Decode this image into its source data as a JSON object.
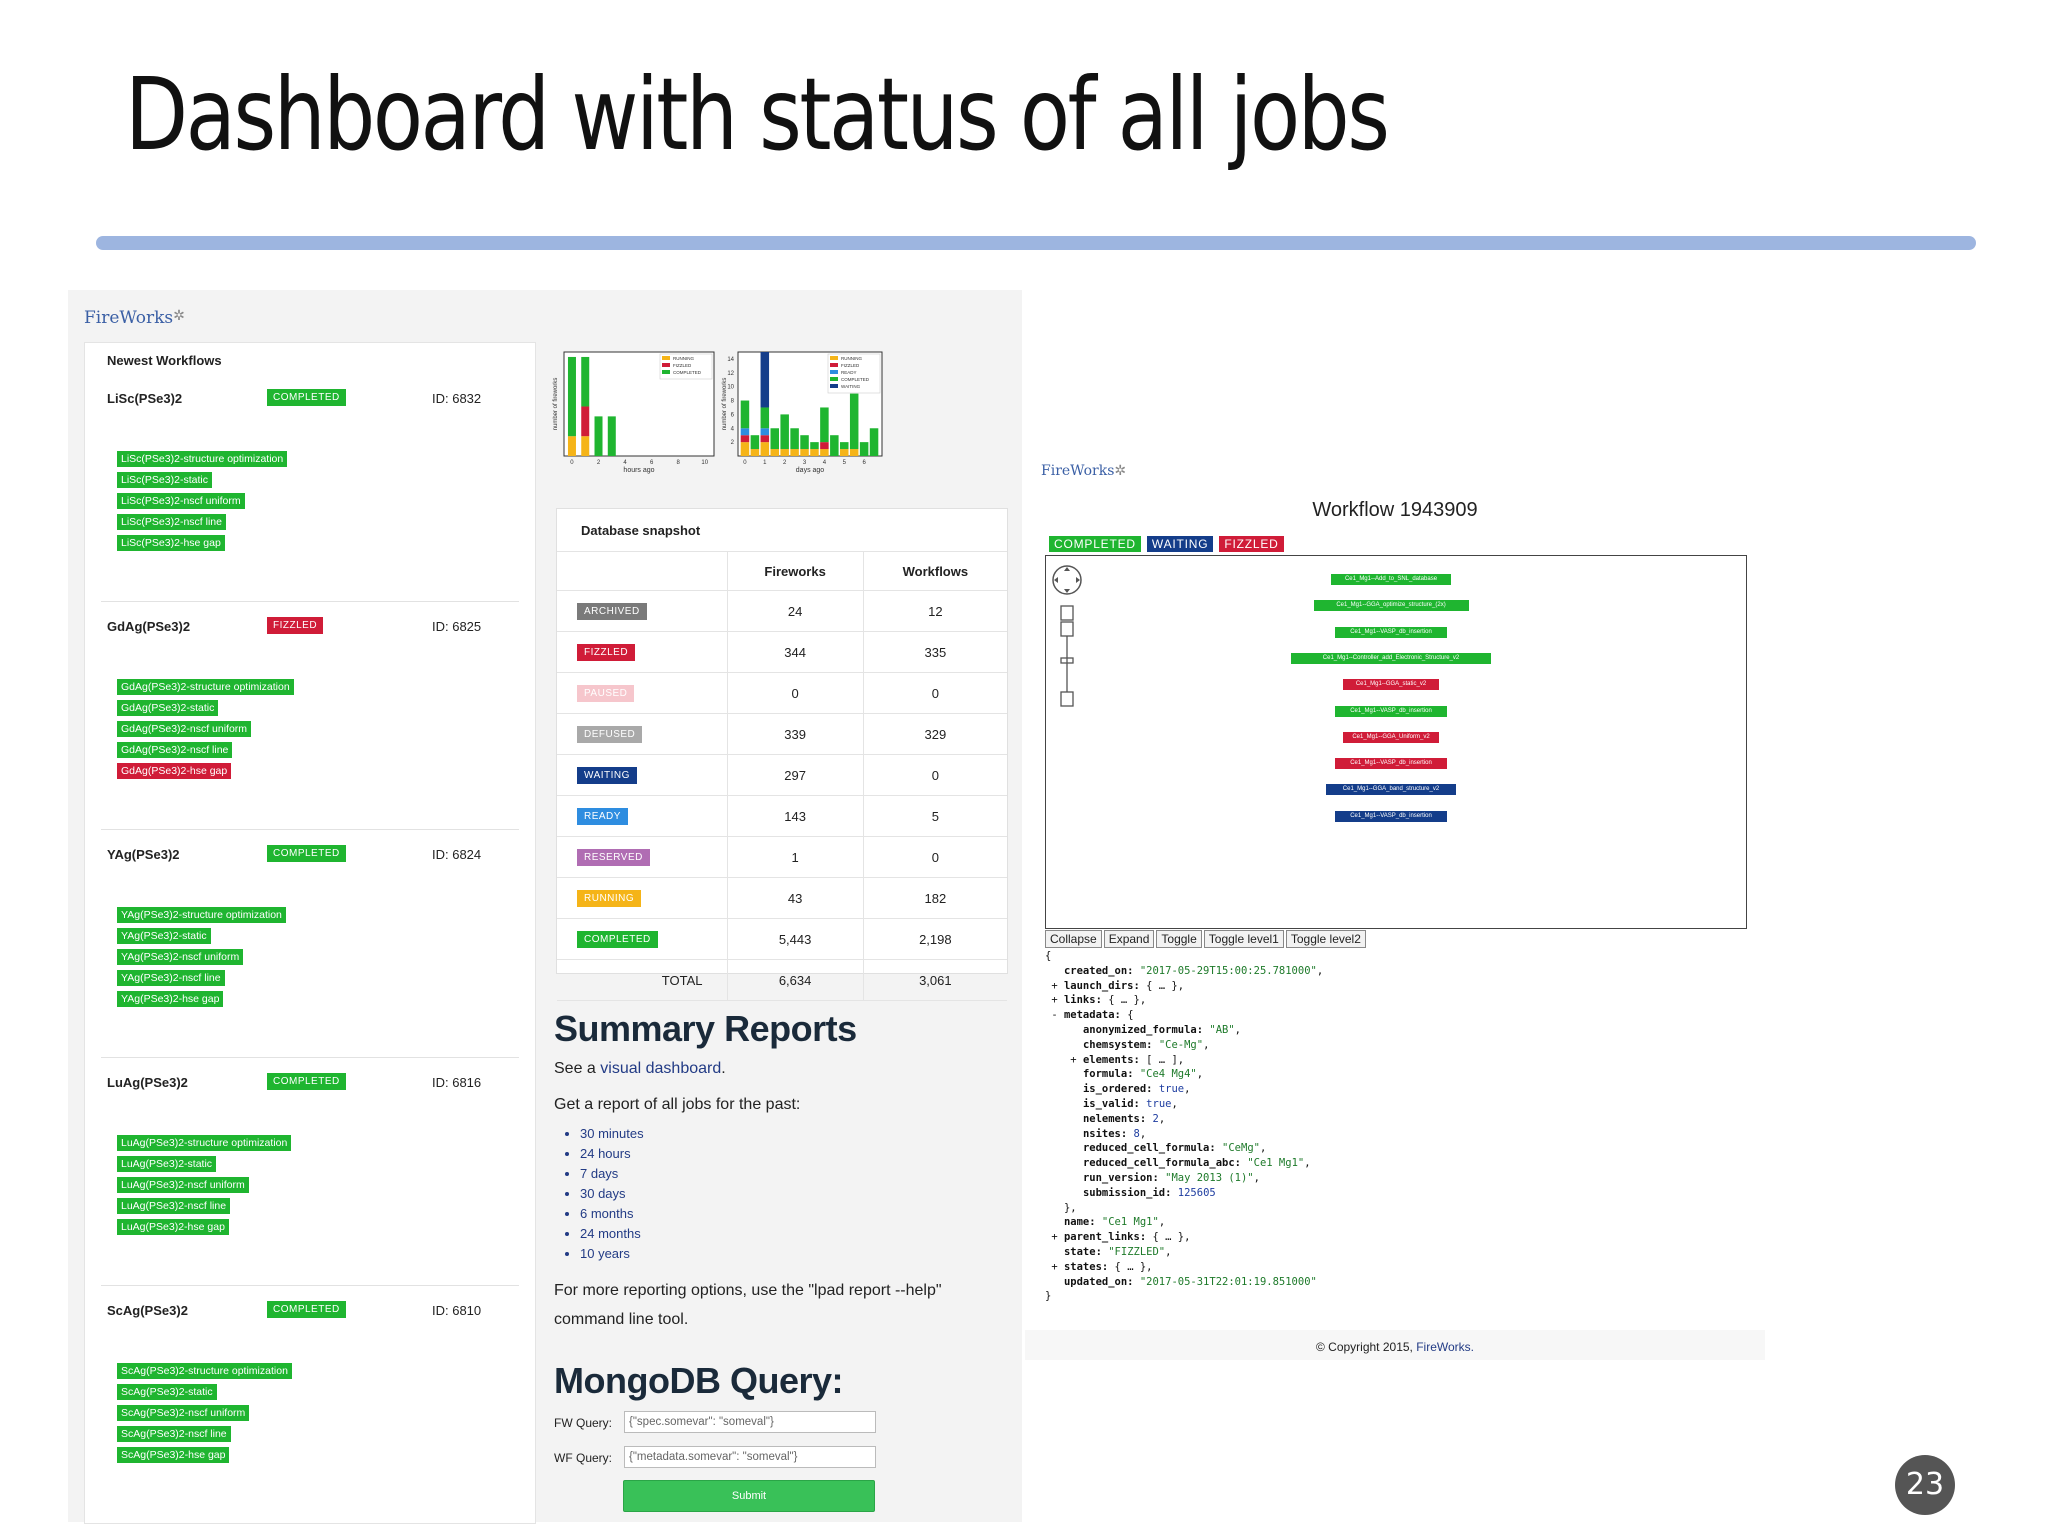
{
  "slide": {
    "title": "Dashboard with status of all jobs",
    "page_number": "23"
  },
  "dashboard": {
    "logo": "FireWorks",
    "newest_workflows_label": "Newest Workflows",
    "workflows": [
      {
        "name": "LiSc(PSe3)2",
        "state": "COMPLETED",
        "id": "ID: 6832",
        "fireworks": [
          {
            "label": "LiSc(PSe3)2-structure optimization",
            "state": "COMPLETED"
          },
          {
            "label": "LiSc(PSe3)2-static",
            "state": "COMPLETED"
          },
          {
            "label": "LiSc(PSe3)2-nscf uniform",
            "state": "COMPLETED"
          },
          {
            "label": "LiSc(PSe3)2-nscf line",
            "state": "COMPLETED"
          },
          {
            "label": "LiSc(PSe3)2-hse gap",
            "state": "COMPLETED"
          }
        ]
      },
      {
        "name": "GdAg(PSe3)2",
        "state": "FIZZLED",
        "id": "ID: 6825",
        "fireworks": [
          {
            "label": "GdAg(PSe3)2-structure optimization",
            "state": "COMPLETED"
          },
          {
            "label": "GdAg(PSe3)2-static",
            "state": "COMPLETED"
          },
          {
            "label": "GdAg(PSe3)2-nscf uniform",
            "state": "COMPLETED"
          },
          {
            "label": "GdAg(PSe3)2-nscf line",
            "state": "COMPLETED"
          },
          {
            "label": "GdAg(PSe3)2-hse gap",
            "state": "FIZZLED"
          }
        ]
      },
      {
        "name": "YAg(PSe3)2",
        "state": "COMPLETED",
        "id": "ID: 6824",
        "fireworks": [
          {
            "label": "YAg(PSe3)2-structure optimization",
            "state": "COMPLETED"
          },
          {
            "label": "YAg(PSe3)2-static",
            "state": "COMPLETED"
          },
          {
            "label": "YAg(PSe3)2-nscf uniform",
            "state": "COMPLETED"
          },
          {
            "label": "YAg(PSe3)2-nscf line",
            "state": "COMPLETED"
          },
          {
            "label": "YAg(PSe3)2-hse gap",
            "state": "COMPLETED"
          }
        ]
      },
      {
        "name": "LuAg(PSe3)2",
        "state": "COMPLETED",
        "id": "ID: 6816",
        "fireworks": [
          {
            "label": "LuAg(PSe3)2-structure optimization",
            "state": "COMPLETED"
          },
          {
            "label": "LuAg(PSe3)2-static",
            "state": "COMPLETED"
          },
          {
            "label": "LuAg(PSe3)2-nscf uniform",
            "state": "COMPLETED"
          },
          {
            "label": "LuAg(PSe3)2-nscf line",
            "state": "COMPLETED"
          },
          {
            "label": "LuAg(PSe3)2-hse gap",
            "state": "COMPLETED"
          }
        ]
      },
      {
        "name": "ScAg(PSe3)2",
        "state": "COMPLETED",
        "id": "ID: 6810",
        "fireworks": [
          {
            "label": "ScAg(PSe3)2-structure optimization",
            "state": "COMPLETED"
          },
          {
            "label": "ScAg(PSe3)2-static",
            "state": "COMPLETED"
          },
          {
            "label": "ScAg(PSe3)2-nscf uniform",
            "state": "COMPLETED"
          },
          {
            "label": "ScAg(PSe3)2-nscf line",
            "state": "COMPLETED"
          },
          {
            "label": "ScAg(PSe3)2-hse gap",
            "state": "COMPLETED"
          }
        ]
      }
    ],
    "snapshot": {
      "title": "Database snapshot",
      "headers": [
        "",
        "Fireworks",
        "Workflows"
      ],
      "rows": [
        {
          "state": "ARCHIVED",
          "color": "#7a7a7a",
          "fireworks": "24",
          "workflows": "12"
        },
        {
          "state": "FIZZLED",
          "color": "#d01c38",
          "fireworks": "344",
          "workflows": "335"
        },
        {
          "state": "PAUSED",
          "color": "#f6c6cc",
          "fireworks": "0",
          "workflows": "0"
        },
        {
          "state": "DEFUSED",
          "color": "#a9a9a9",
          "fireworks": "339",
          "workflows": "329"
        },
        {
          "state": "WAITING",
          "color": "#143d8a",
          "fireworks": "297",
          "workflows": "0"
        },
        {
          "state": "READY",
          "color": "#2e8de0",
          "fireworks": "143",
          "workflows": "5"
        },
        {
          "state": "RESERVED",
          "color": "#b06db3",
          "fireworks": "1",
          "workflows": "0"
        },
        {
          "state": "RUNNING",
          "color": "#f5b418",
          "fireworks": "43",
          "workflows": "182"
        },
        {
          "state": "COMPLETED",
          "color": "#1fb530",
          "fireworks": "5,443",
          "workflows": "2,198"
        }
      ],
      "total": {
        "label": "TOTAL",
        "fireworks": "6,634",
        "workflows": "3,061"
      }
    },
    "summary": {
      "heading": "Summary Reports",
      "see_prefix": "See a ",
      "see_link": "visual dashboard",
      "see_suffix": ".",
      "report_intro": "Get a report of all jobs for the past:",
      "periods": [
        "30 minutes",
        "24 hours",
        "7 days",
        "30 days",
        "6 months",
        "24 months",
        "10 years"
      ],
      "more_options": "For more reporting options, use the \"lpad report --help\" command line tool."
    },
    "mongo": {
      "heading": "MongoDB Query:",
      "fw_label": "FW Query:",
      "fw_value": "{\"spec.somevar\": \"someval\"}",
      "wf_label": "WF Query:",
      "wf_value": "{\"metadata.somevar\": \"someval\"}",
      "submit_label": "Submit"
    }
  },
  "chart_data": [
    {
      "type": "bar",
      "stacked": true,
      "xlabel": "hours ago",
      "ylabel": "number of fireworks",
      "x_ticks": [
        "0",
        "2",
        "4",
        "6",
        "8",
        "10"
      ],
      "x": [
        0,
        1,
        2,
        3
      ],
      "series": [
        {
          "name": "RUNNING",
          "color": "#f5b418",
          "values": [
            2,
            2,
            0,
            0
          ]
        },
        {
          "name": "FIZZLED",
          "color": "#d01c38",
          "values": [
            0,
            3,
            0,
            0
          ]
        },
        {
          "name": "COMPLETED",
          "color": "#1fb530",
          "values": [
            8,
            5,
            4,
            4
          ]
        }
      ],
      "ylim": [
        0,
        10.5
      ],
      "legend": "top-right"
    },
    {
      "type": "bar",
      "stacked": true,
      "xlabel": "days ago",
      "ylabel": "number of fireworks",
      "x_ticks": [
        "0",
        "1",
        "2",
        "3",
        "4",
        "5",
        "6"
      ],
      "y_ticks": [
        "2",
        "4",
        "6",
        "8",
        "10",
        "12",
        "14"
      ],
      "x": [
        0,
        0.5,
        1,
        1.5,
        2,
        2.5,
        3,
        3.5,
        4,
        4.5,
        5,
        5.5,
        6,
        6.5
      ],
      "series": [
        {
          "name": "RUNNING",
          "color": "#f5b418",
          "values": [
            2,
            1,
            2,
            1,
            1,
            1,
            1,
            1,
            1,
            0,
            1,
            1,
            0,
            0
          ]
        },
        {
          "name": "FIZZLED",
          "color": "#d01c38",
          "values": [
            1,
            0,
            1,
            0,
            0,
            0,
            0,
            0,
            1,
            0,
            0,
            0,
            0,
            0
          ]
        },
        {
          "name": "READY",
          "color": "#2e8de0",
          "values": [
            1,
            0,
            1,
            0,
            0,
            0,
            0,
            0,
            0,
            0,
            0,
            0,
            0,
            0
          ]
        },
        {
          "name": "COMPLETED",
          "color": "#1fb530",
          "values": [
            4,
            2,
            3,
            3,
            5,
            3,
            2,
            1,
            5,
            3,
            1,
            8,
            2,
            4
          ]
        },
        {
          "name": "WAITING",
          "color": "#143d8a",
          "values": [
            0,
            0,
            8,
            0,
            0,
            0,
            0,
            0,
            0,
            0,
            0,
            0,
            0,
            0
          ]
        }
      ],
      "ylim": [
        0,
        15
      ],
      "legend": "top-right"
    }
  ],
  "workflow_view": {
    "logo": "FireWorks",
    "title": "Workflow 1943909",
    "tags": [
      {
        "label": "COMPLETED",
        "color": "#1fb530"
      },
      {
        "label": "WAITING",
        "color": "#143d8a"
      },
      {
        "label": "FIZZLED",
        "color": "#d01c38"
      }
    ],
    "nodes": [
      {
        "label": "Ce1_Mg1--Add_to_SNL_database",
        "state": "COMPLETED"
      },
      {
        "label": "Ce1_Mg1--GGA_optimize_structure_(2x)",
        "state": "COMPLETED"
      },
      {
        "label": "Ce1_Mg1--VASP_db_insertion",
        "state": "COMPLETED"
      },
      {
        "label": "Ce1_Mg1--Controller_add_Electronic_Structure_v2",
        "state": "COMPLETED"
      },
      {
        "label": "Ce1_Mg1--GGA_static_v2",
        "state": "FIZZLED"
      },
      {
        "label": "Ce1_Mg1--VASP_db_insertion",
        "state": "COMPLETED"
      },
      {
        "label": "Ce1_Mg1--GGA_Uniform_v2",
        "state": "FIZZLED"
      },
      {
        "label": "Ce1_Mg1--VASP_db_insertion",
        "state": "FIZZLED"
      },
      {
        "label": "Ce1_Mg1--GGA_band_structure_v2",
        "state": "WAITING"
      },
      {
        "label": "Ce1_Mg1--VASP_db_insertion",
        "state": "WAITING"
      }
    ],
    "buttons": [
      "Collapse",
      "Expand",
      "Toggle",
      "Toggle level1",
      "Toggle level2"
    ],
    "json": {
      "created_on": "\"2017-05-29T15:00:25.781000\"",
      "anonymized_formula": "\"AB\"",
      "chemsystem": "\"Ce-Mg\"",
      "formula": "\"Ce4 Mg4\"",
      "is_ordered": "true",
      "is_valid": "true",
      "nelements": "2",
      "nsites": "8",
      "reduced_cell_formula": "\"CeMg\"",
      "reduced_cell_formula_abc": "\"Ce1 Mg1\"",
      "run_version": "\"May 2013 (1)\"",
      "submission_id": "125605",
      "name": "\"Ce1 Mg1\"",
      "state": "\"FIZZLED\"",
      "updated_on": "\"2017-05-31T22:01:19.851000\""
    },
    "copyright_prefix": "© Copyright 2015, ",
    "copyright_brand": "FireWorks."
  }
}
